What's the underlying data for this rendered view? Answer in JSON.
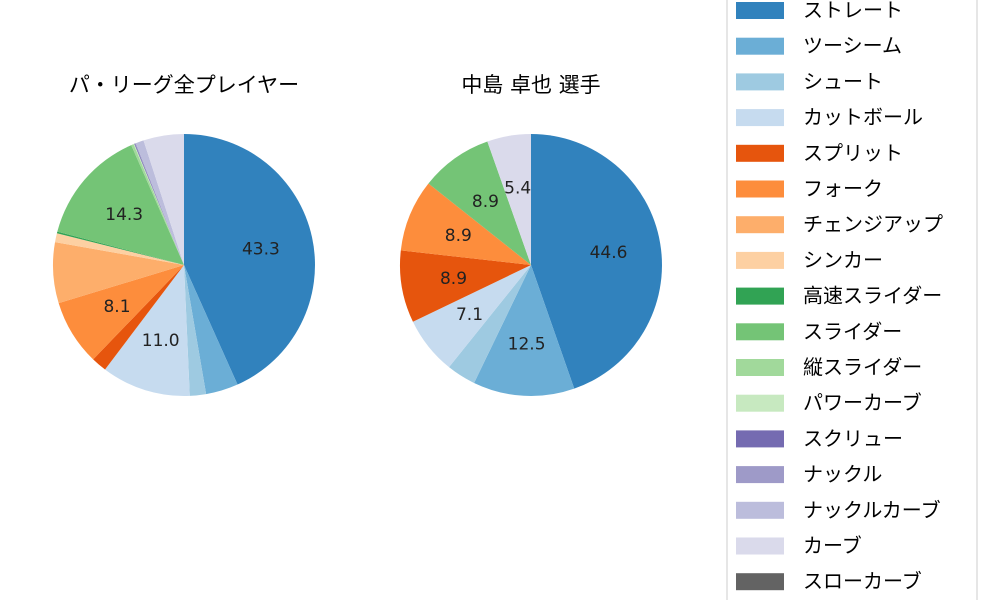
{
  "chart_data": [
    {
      "type": "pie",
      "title": "パ・リーグ全プレイヤー",
      "slices": [
        {
          "label": "ストレート",
          "value": 43.3,
          "color": "#3182bd",
          "text": "43.3"
        },
        {
          "label": "ツーシーム",
          "value": 4.0,
          "color": "#6baed6",
          "text": ""
        },
        {
          "label": "シュート",
          "value": 2.0,
          "color": "#9ecae1",
          "text": ""
        },
        {
          "label": "カットボール",
          "value": 11.0,
          "color": "#c6dbef",
          "text": "11.0"
        },
        {
          "label": "スプリット",
          "value": 1.9,
          "color": "#e6550d",
          "text": ""
        },
        {
          "label": "フォーク",
          "value": 8.1,
          "color": "#fd8d3c",
          "text": "8.1"
        },
        {
          "label": "チェンジアップ",
          "value": 7.5,
          "color": "#fdae6b",
          "text": ""
        },
        {
          "label": "シンカー",
          "value": 1.1,
          "color": "#fdd0a2",
          "text": ""
        },
        {
          "label": "高速スライダー",
          "value": 0.2,
          "color": "#31a354",
          "text": ""
        },
        {
          "label": "スライダー",
          "value": 14.3,
          "color": "#74c476",
          "text": "14.3"
        },
        {
          "label": "縦スライダー",
          "value": 0.3,
          "color": "#a1d99b",
          "text": ""
        },
        {
          "label": "パワーカーブ",
          "value": 0.1,
          "color": "#c7e9c0",
          "text": ""
        },
        {
          "label": "スクリュー",
          "value": 0.1,
          "color": "#756bb1",
          "text": ""
        },
        {
          "label": "ナックル",
          "value": 0.1,
          "color": "#9e9ac8",
          "text": ""
        },
        {
          "label": "ナックルカーブ",
          "value": 1.0,
          "color": "#bcbddc",
          "text": ""
        },
        {
          "label": "カーブ",
          "value": 5.0,
          "color": "#dadaeb",
          "text": ""
        },
        {
          "label": "スローカーブ",
          "value": 0.0,
          "color": "#636363",
          "text": ""
        }
      ]
    },
    {
      "type": "pie",
      "title": "中島 卓也  選手",
      "slices": [
        {
          "label": "ストレート",
          "value": 44.6,
          "color": "#3182bd",
          "text": "44.6"
        },
        {
          "label": "ツーシーム",
          "value": 12.5,
          "color": "#6baed6",
          "text": "12.5"
        },
        {
          "label": "シュート",
          "value": 3.6,
          "color": "#9ecae1",
          "text": ""
        },
        {
          "label": "カットボール",
          "value": 7.1,
          "color": "#c6dbef",
          "text": "7.1"
        },
        {
          "label": "スプリット",
          "value": 8.9,
          "color": "#e6550d",
          "text": "8.9"
        },
        {
          "label": "フォーク",
          "value": 8.9,
          "color": "#fd8d3c",
          "text": "8.9"
        },
        {
          "label": "スライダー",
          "value": 8.9,
          "color": "#74c476",
          "text": "8.9"
        },
        {
          "label": "カーブ",
          "value": 5.4,
          "color": "#dadaeb",
          "text": "5.4"
        }
      ]
    }
  ],
  "legend": [
    {
      "label": "ストレート",
      "color": "#3182bd"
    },
    {
      "label": "ツーシーム",
      "color": "#6baed6"
    },
    {
      "label": "シュート",
      "color": "#9ecae1"
    },
    {
      "label": "カットボール",
      "color": "#c6dbef"
    },
    {
      "label": "スプリット",
      "color": "#e6550d"
    },
    {
      "label": "フォーク",
      "color": "#fd8d3c"
    },
    {
      "label": "チェンジアップ",
      "color": "#fdae6b"
    },
    {
      "label": "シンカー",
      "color": "#fdd0a2"
    },
    {
      "label": "高速スライダー",
      "color": "#31a354"
    },
    {
      "label": "スライダー",
      "color": "#74c476"
    },
    {
      "label": "縦スライダー",
      "color": "#a1d99b"
    },
    {
      "label": "パワーカーブ",
      "color": "#c7e9c0"
    },
    {
      "label": "スクリュー",
      "color": "#756bb1"
    },
    {
      "label": "ナックル",
      "color": "#9e9ac8"
    },
    {
      "label": "ナックルカーブ",
      "color": "#bcbddc"
    },
    {
      "label": "カーブ",
      "color": "#dadaeb"
    },
    {
      "label": "スローカーブ",
      "color": "#636363"
    }
  ],
  "legend_placement": "right"
}
